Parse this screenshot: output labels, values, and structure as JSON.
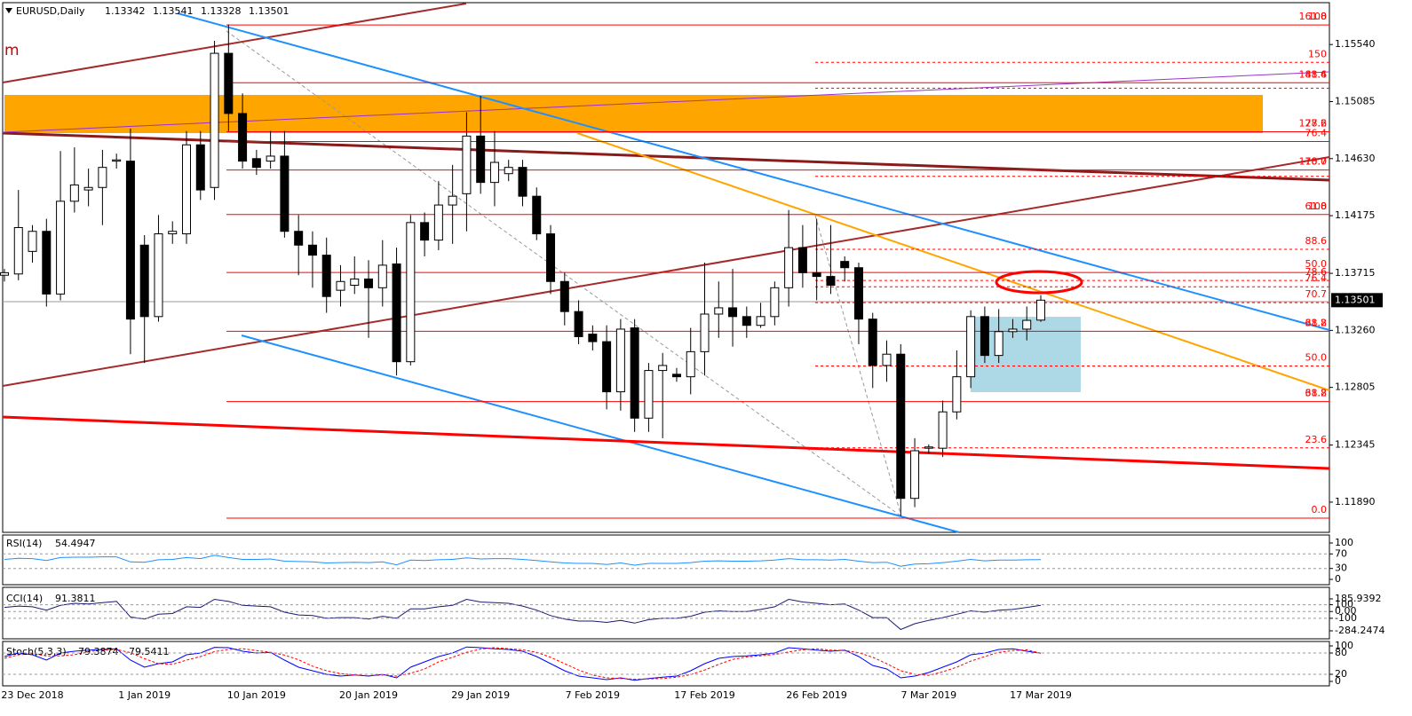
{
  "chart_data": [
    {
      "type": "candlestick",
      "symbol": "EURUSD,Daily",
      "partial_label": "m",
      "categories": [
        null,
        null,
        "23 Dec 2018",
        null,
        null,
        null,
        null,
        null,
        null,
        null,
        "1 Jan 2019",
        null,
        null,
        null,
        null,
        null,
        null,
        null,
        "10 Jan 2019",
        null,
        null,
        null,
        null,
        null,
        null,
        null,
        "20 Jan 2019",
        null,
        null,
        null,
        null,
        null,
        null,
        null,
        "29 Jan 2019",
        null,
        null,
        null,
        null,
        null,
        null,
        null,
        "7 Feb 2019",
        null,
        null,
        null,
        null,
        null,
        null,
        null,
        "17 Feb 2019",
        null,
        null,
        null,
        null,
        null,
        null,
        null,
        "26 Feb 2019",
        null,
        null,
        null,
        null,
        null,
        null,
        null,
        "7 Mar 2019",
        null,
        null,
        null,
        null,
        null,
        null,
        null,
        "17 Mar 2019"
      ],
      "open": [
        1.137,
        1.1371,
        1.1389,
        1.1405,
        1.1355,
        1.1429,
        1.1438,
        1.144,
        1.1461,
        1.1461,
        1.1394,
        1.1337,
        1.1403,
        1.1403,
        1.1474,
        1.144,
        1.1547,
        1.1499,
        1.1463,
        1.1461,
        1.1465,
        1.1405,
        1.1394,
        1.1386,
        1.1358,
        1.1362,
        1.1367,
        1.136,
        1.1379,
        1.1301,
        1.1412,
        1.1398,
        1.1426,
        1.1435,
        1.1481,
        1.1444,
        1.1451,
        1.1456,
        1.1433,
        1.1403,
        1.1365,
        1.1341,
        1.1323,
        1.1317,
        1.1277,
        1.1328,
        1.1256,
        1.1294,
        1.1291,
        1.1289,
        1.1309,
        1.1339,
        1.1344,
        1.1337,
        1.133,
        1.1337,
        1.136,
        1.1392,
        1.1372,
        1.1369,
        1.1381,
        1.1376,
        1.1335,
        1.1298,
        1.1307,
        1.1192,
        1.1232,
        1.1232,
        1.1261,
        1.1289,
        1.1337,
        1.1306,
        1.1325,
        1.1327,
        1.13342
      ],
      "high": [
        1.1375,
        1.1438,
        1.141,
        1.1415,
        1.1469,
        1.1472,
        1.1455,
        1.147,
        1.1467,
        1.1487,
        1.1402,
        1.1418,
        1.1413,
        1.1485,
        1.1485,
        1.1557,
        1.157,
        1.1515,
        1.147,
        1.1485,
        1.1485,
        1.1418,
        1.1405,
        1.14,
        1.1378,
        1.1385,
        1.1382,
        1.1398,
        1.1392,
        1.1418,
        1.142,
        1.1445,
        1.1458,
        1.15,
        1.1513,
        1.1485,
        1.1462,
        1.1462,
        1.144,
        1.141,
        1.1372,
        1.135,
        1.133,
        1.133,
        1.1335,
        1.1335,
        1.13,
        1.1308,
        1.1296,
        1.1328,
        1.138,
        1.1365,
        1.1375,
        1.1345,
        1.1348,
        1.1365,
        1.1422,
        1.141,
        1.1415,
        1.141,
        1.1385,
        1.138,
        1.134,
        1.1318,
        1.1315,
        1.124,
        1.1235,
        1.127,
        1.131,
        1.1342,
        1.1345,
        1.1343,
        1.1335,
        1.1345,
        1.13541
      ],
      "low": [
        1.1365,
        1.1366,
        1.138,
        1.1345,
        1.135,
        1.142,
        1.1425,
        1.141,
        1.1455,
        1.1307,
        1.13,
        1.1333,
        1.1395,
        1.1395,
        1.143,
        1.143,
        1.1485,
        1.1455,
        1.145,
        1.1455,
        1.14,
        1.137,
        1.136,
        1.134,
        1.1345,
        1.1355,
        1.132,
        1.1345,
        1.129,
        1.1298,
        1.1385,
        1.139,
        1.1395,
        1.1405,
        1.1435,
        1.1425,
        1.1445,
        1.1425,
        1.1398,
        1.1355,
        1.133,
        1.1315,
        1.131,
        1.1263,
        1.1262,
        1.1245,
        1.1245,
        1.124,
        1.1285,
        1.1275,
        1.129,
        1.132,
        1.1313,
        1.132,
        1.1328,
        1.133,
        1.1345,
        1.136,
        1.135,
        1.1355,
        1.1365,
        1.1315,
        1.128,
        1.1285,
        1.1178,
        1.1185,
        1.1228,
        1.1225,
        1.1255,
        1.128,
        1.13,
        1.13,
        1.132,
        1.1318,
        1.13328
      ],
      "close": [
        1.1372,
        1.1408,
        1.1405,
        1.1355,
        1.1429,
        1.1442,
        1.144,
        1.1456,
        1.1462,
        1.1335,
        1.1337,
        1.1403,
        1.1405,
        1.1474,
        1.1438,
        1.1547,
        1.1499,
        1.1461,
        1.1456,
        1.1465,
        1.1405,
        1.1394,
        1.1386,
        1.1353,
        1.1365,
        1.1367,
        1.136,
        1.1378,
        1.1301,
        1.1412,
        1.1398,
        1.1426,
        1.1433,
        1.1481,
        1.1444,
        1.146,
        1.1456,
        1.1433,
        1.1403,
        1.1365,
        1.1341,
        1.1321,
        1.1317,
        1.1277,
        1.1327,
        1.1256,
        1.1294,
        1.1298,
        1.1289,
        1.1309,
        1.1339,
        1.1344,
        1.1337,
        1.133,
        1.1337,
        1.136,
        1.1392,
        1.1372,
        1.1369,
        1.1362,
        1.1376,
        1.1335,
        1.1298,
        1.1307,
        1.1192,
        1.123,
        1.1233,
        1.1261,
        1.1289,
        1.1337,
        1.1306,
        1.1325,
        1.1327,
        1.1334,
        1.13501
      ],
      "ylim": [
        1.11649,
        1.15874
      ],
      "yticks": [
        {
          "value": 1.1554,
          "label": "1.15540"
        },
        {
          "value": 1.15085,
          "label": "1.15085"
        },
        {
          "value": 1.1463,
          "label": "1.14630"
        },
        {
          "value": 1.14175,
          "label": "1.14175"
        },
        {
          "value": 1.13715,
          "label": "1.13715"
        },
        {
          "value": 1.1326,
          "label": "1.13260"
        },
        {
          "value": 1.12805,
          "label": "1.12805"
        },
        {
          "value": 1.12345,
          "label": "1.12345"
        },
        {
          "value": 1.1189,
          "label": "1.11890"
        }
      ],
      "fib_levels": [
        {
          "price": 1.15696,
          "labels": [
            "161.8",
            "100"
          ],
          "style": "solid"
        },
        {
          "price": 1.15398,
          "labels": [
            "150"
          ],
          "style": "dashed"
        },
        {
          "price": 1.15235,
          "labels": [
            "88.6",
            "141.4"
          ],
          "style": "solid"
        },
        {
          "price": 1.15192,
          "labels": [],
          "style": "dashed"
        },
        {
          "price": 1.14844,
          "labels": [
            "127.2",
            "78.6"
          ],
          "style": "solid"
        },
        {
          "price": 1.14766,
          "labels": [
            "76.4"
          ],
          "style": "solid"
        },
        {
          "price": 1.14539,
          "labels": [
            "70.7",
            "118.0"
          ],
          "style": "solid"
        },
        {
          "price": 1.14489,
          "labels": [],
          "style": "dashed"
        },
        {
          "price": 1.14184,
          "labels": [
            "61.8",
            "100"
          ],
          "style": "solid"
        },
        {
          "price": 1.13907,
          "labels": [
            "88.6"
          ],
          "style": "dashed"
        },
        {
          "price": 1.13722,
          "labels": [
            "50.0"
          ],
          "style": "solid"
        },
        {
          "price": 1.13658,
          "labels": [
            "78.6"
          ],
          "style": "dashed"
        },
        {
          "price": 1.13608,
          "labels": [
            "76.4"
          ],
          "style": "dashed"
        },
        {
          "price": 1.13481,
          "labels": [
            "70.7"
          ],
          "style": "dashed"
        },
        {
          "price": 1.13253,
          "labels": [
            "61.8",
            "38.2"
          ],
          "style": "solid"
        },
        {
          "price": 1.12976,
          "labels": [
            "50.0"
          ],
          "style": "dashed"
        },
        {
          "price": 1.12692,
          "labels": [
            "38.2",
            "61.8"
          ],
          "style": "solid"
        },
        {
          "price": 1.12323,
          "labels": [
            "23.6"
          ],
          "style": "dashed"
        },
        {
          "price": 1.11762,
          "labels": [
            "0.0"
          ],
          "style": "solid"
        }
      ]
    },
    {
      "type": "line",
      "title": "RSI(14)",
      "color": "#1e90ff",
      "values": [
        55,
        58,
        57,
        52,
        60,
        61,
        61,
        62,
        62,
        48,
        47,
        54,
        55,
        60,
        57,
        66,
        60,
        55,
        55,
        56,
        50,
        49,
        48,
        45,
        46,
        47,
        46,
        48,
        40,
        53,
        52,
        54,
        55,
        59,
        56,
        57,
        57,
        55,
        52,
        48,
        45,
        44,
        44,
        41,
        45,
        39,
        44,
        44,
        44,
        46,
        50,
        51,
        50,
        50,
        51,
        53,
        57,
        54,
        54,
        53,
        55,
        50,
        46,
        47,
        36,
        42,
        43,
        46,
        50,
        55,
        51,
        53,
        53,
        54,
        54.4947
      ],
      "ylim": [
        0,
        100
      ],
      "yticks": [
        0,
        30,
        70,
        100
      ]
    },
    {
      "type": "line",
      "title": "CCI(14)",
      "color": "#191970",
      "values": [
        60,
        80,
        70,
        20,
        90,
        120,
        110,
        130,
        150,
        -80,
        -110,
        -40,
        -30,
        70,
        60,
        180,
        150,
        90,
        80,
        70,
        -10,
        -50,
        -60,
        -100,
        -90,
        -90,
        -110,
        -70,
        -100,
        40,
        40,
        70,
        90,
        180,
        140,
        130,
        120,
        80,
        20,
        -60,
        -110,
        -140,
        -140,
        -160,
        -130,
        -170,
        -120,
        -100,
        -100,
        -70,
        -10,
        10,
        0,
        0,
        30,
        70,
        180,
        140,
        120,
        100,
        110,
        20,
        -90,
        -90,
        -265,
        -180,
        -130,
        -90,
        -40,
        10,
        -10,
        20,
        30,
        60,
        91.3811
      ],
      "ylim": [
        -284.2474,
        185.9392
      ],
      "yticks": [
        -284.2474,
        -100,
        {
          "value": 0,
          "label": "0.00"
        },
        100,
        185.9392
      ]
    },
    {
      "type": "line",
      "title": "Stoch(5,3,3)",
      "series": [
        {
          "color": "#0000ff",
          "values": [
            70,
            80,
            75,
            60,
            80,
            85,
            88,
            90,
            92,
            60,
            40,
            50,
            55,
            75,
            80,
            96,
            95,
            85,
            80,
            82,
            60,
            40,
            30,
            20,
            15,
            18,
            15,
            20,
            10,
            40,
            55,
            70,
            80,
            97,
            95,
            92,
            90,
            85,
            70,
            50,
            30,
            15,
            10,
            5,
            10,
            3,
            8,
            12,
            15,
            30,
            50,
            65,
            70,
            72,
            75,
            80,
            95,
            92,
            88,
            85,
            88,
            70,
            45,
            35,
            10,
            15,
            25,
            40,
            55,
            75,
            80,
            90,
            92,
            85,
            79.3874
          ]
        },
        {
          "color": "#ff0000",
          "dashed": true,
          "values": [
            65,
            75,
            78,
            72,
            72,
            75,
            84,
            88,
            90,
            81,
            64,
            50,
            48,
            60,
            70,
            84,
            90,
            92,
            87,
            82,
            74,
            61,
            43,
            30,
            22,
            18,
            16,
            18,
            15,
            23,
            35,
            55,
            68,
            82,
            91,
            95,
            92,
            89,
            82,
            68,
            50,
            32,
            18,
            10,
            8,
            6,
            7,
            8,
            12,
            19,
            32,
            48,
            62,
            69,
            72,
            76,
            83,
            89,
            92,
            88,
            87,
            81,
            68,
            50,
            30,
            20,
            17,
            27,
            40,
            57,
            70,
            82,
            87,
            89,
            79.5411
          ]
        }
      ],
      "ylim": [
        0,
        100
      ],
      "yticks": [
        0,
        20,
        80,
        100
      ]
    }
  ]
}
